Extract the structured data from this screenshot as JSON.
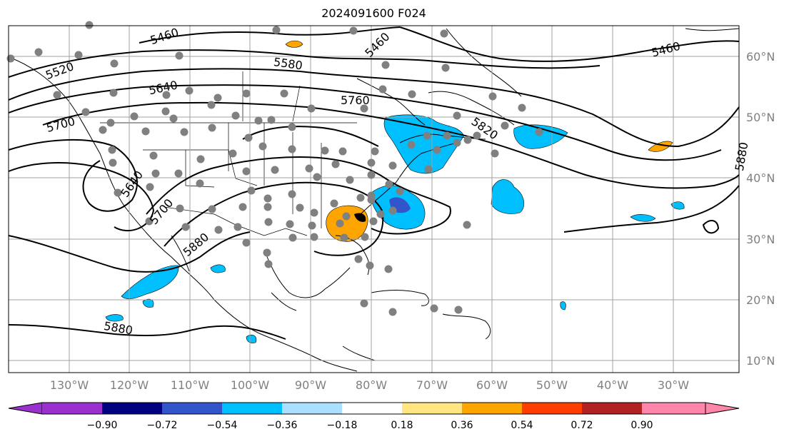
{
  "title": "2024091600 F024",
  "map": {
    "lon_labels": [
      "130°W",
      "120°W",
      "110°W",
      "100°W",
      "90°W",
      "80°W",
      "70°W",
      "60°W",
      "50°W",
      "40°W",
      "30°W"
    ],
    "lat_labels": [
      "10°N",
      "20°N",
      "30°N",
      "40°N",
      "50°N",
      "60°N"
    ],
    "contour_levels": [
      "5460",
      "5520",
      "5580",
      "5640",
      "5700",
      "5760",
      "5820",
      "5880"
    ]
  },
  "colorbar": {
    "tick_labels": [
      "−0.90",
      "−0.72",
      "−0.54",
      "−0.36",
      "−0.18",
      "0.18",
      "0.36",
      "0.54",
      "0.72",
      "0.90"
    ],
    "colors": [
      "#9b30d0",
      "#000080",
      "#3355cc",
      "#00bfff",
      "#aadfff",
      "#ffffff",
      "#ffe680",
      "#ffa500",
      "#ff3d00",
      "#b22222",
      "#ff85aa"
    ]
  },
  "contour_labels": [
    {
      "text": "5460"
    },
    {
      "text": "5460"
    },
    {
      "text": "5460"
    },
    {
      "text": "5520"
    },
    {
      "text": "5580"
    },
    {
      "text": "5640"
    },
    {
      "text": "5640"
    },
    {
      "text": "5700"
    },
    {
      "text": "5700"
    },
    {
      "text": "5760"
    },
    {
      "text": "5820"
    },
    {
      "text": "5880"
    },
    {
      "text": "5880"
    },
    {
      "text": "5880"
    }
  ]
}
